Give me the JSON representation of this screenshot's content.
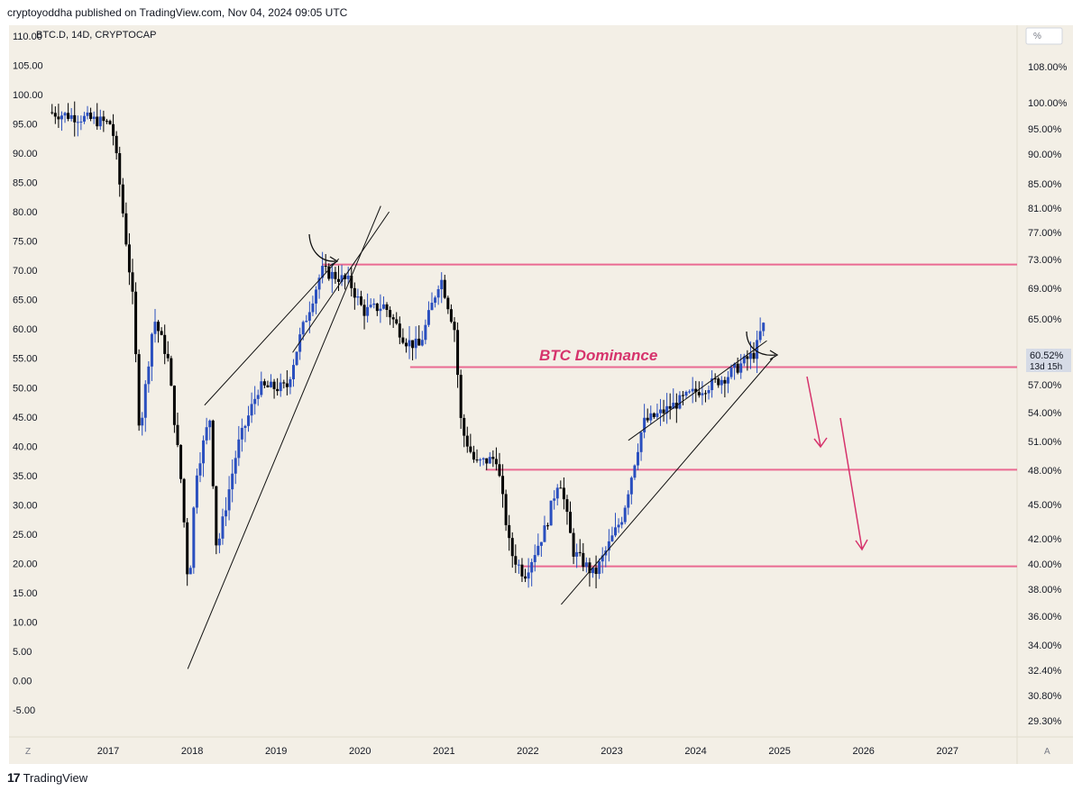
{
  "header": {
    "published": "cryptoyoddha published on TradingView.com, Nov 04, 2024 09:05 UTC"
  },
  "symbol_label": "BTC.D, 14D, CRYPTOCAP",
  "annotation_text": "BTC Dominance",
  "scale_toggle": "%",
  "bottom_left_btn": "Z",
  "bottom_right_btn": "A",
  "price_tag": {
    "value": "60.52%",
    "countdown": "13d 15h"
  },
  "footer": {
    "brand": "TradingView",
    "brand_mark": "17"
  },
  "colors": {
    "background": "#f3efe6",
    "up": "#2a4fbf",
    "down": "#000000",
    "level": "#ea6a92",
    "annotation": "#d6336c",
    "trend": "#111111"
  },
  "chart_data": {
    "type": "candlestick",
    "title": "BTC.D, 14D, CRYPTOCAP",
    "xlabel": "",
    "ylabel": "",
    "x_ticks": [
      "2017",
      "2018",
      "2019",
      "2020",
      "2021",
      "2022",
      "2023",
      "2024",
      "2025",
      "2026",
      "2027"
    ],
    "left_axis": {
      "ticks": [
        "110.00",
        "105.00",
        "100.00",
        "95.00",
        "90.00",
        "85.00",
        "80.00",
        "75.00",
        "70.00",
        "65.00",
        "60.00",
        "55.00",
        "50.00",
        "45.00",
        "40.00",
        "35.00",
        "30.00",
        "25.00",
        "20.00",
        "15.00",
        "10.00",
        "5.00",
        "0.00",
        "-5.00"
      ],
      "range": [
        -5,
        110
      ]
    },
    "right_axis": {
      "ticks": [
        "108.00%",
        "100.00%",
        "95.00%",
        "90.00%",
        "85.00%",
        "81.00%",
        "77.00%",
        "73.00%",
        "69.00%",
        "65.00%",
        "57.00%",
        "54.00%",
        "51.00%",
        "48.00%",
        "45.00%",
        "42.00%",
        "40.00%",
        "38.00%",
        "36.00%",
        "34.00%",
        "32.40%",
        "30.80%",
        "29.30%"
      ]
    },
    "horizontal_levels": [
      71,
      53.5,
      36,
      19.5
    ],
    "path_points": [
      [
        "2016-05",
        97
      ],
      [
        "2016-10",
        96
      ],
      [
        "2017-02",
        95
      ],
      [
        "2017-03",
        86
      ],
      [
        "2017-05",
        65
      ],
      [
        "2017-06",
        42
      ],
      [
        "2017-08",
        62
      ],
      [
        "2017-10",
        55
      ],
      [
        "2017-12",
        33
      ],
      [
        "2018-01",
        15
      ],
      [
        "2018-02",
        35
      ],
      [
        "2018-04",
        45
      ],
      [
        "2018-05",
        22
      ],
      [
        "2018-08",
        40
      ],
      [
        "2018-11",
        50
      ],
      [
        "2019-01",
        50
      ],
      [
        "2019-03",
        50
      ],
      [
        "2019-05",
        59
      ],
      [
        "2019-08",
        70
      ],
      [
        "2019-12",
        68
      ],
      [
        "2020-02",
        63
      ],
      [
        "2020-05",
        64
      ],
      [
        "2020-08",
        58
      ],
      [
        "2020-10",
        57
      ],
      [
        "2021-01",
        69
      ],
      [
        "2021-03",
        60
      ],
      [
        "2021-04",
        43
      ],
      [
        "2021-06",
        37
      ],
      [
        "2021-09",
        38
      ],
      [
        "2021-11",
        22
      ],
      [
        "2022-01",
        18
      ],
      [
        "2022-04",
        26
      ],
      [
        "2022-06",
        35
      ],
      [
        "2022-08",
        22
      ],
      [
        "2022-11",
        18
      ],
      [
        "2023-03",
        28
      ],
      [
        "2023-06",
        44
      ],
      [
        "2023-09",
        46
      ],
      [
        "2024-01",
        49
      ],
      [
        "2024-06",
        52
      ],
      [
        "2024-10",
        56
      ],
      [
        "2024-11",
        60.52
      ]
    ]
  }
}
